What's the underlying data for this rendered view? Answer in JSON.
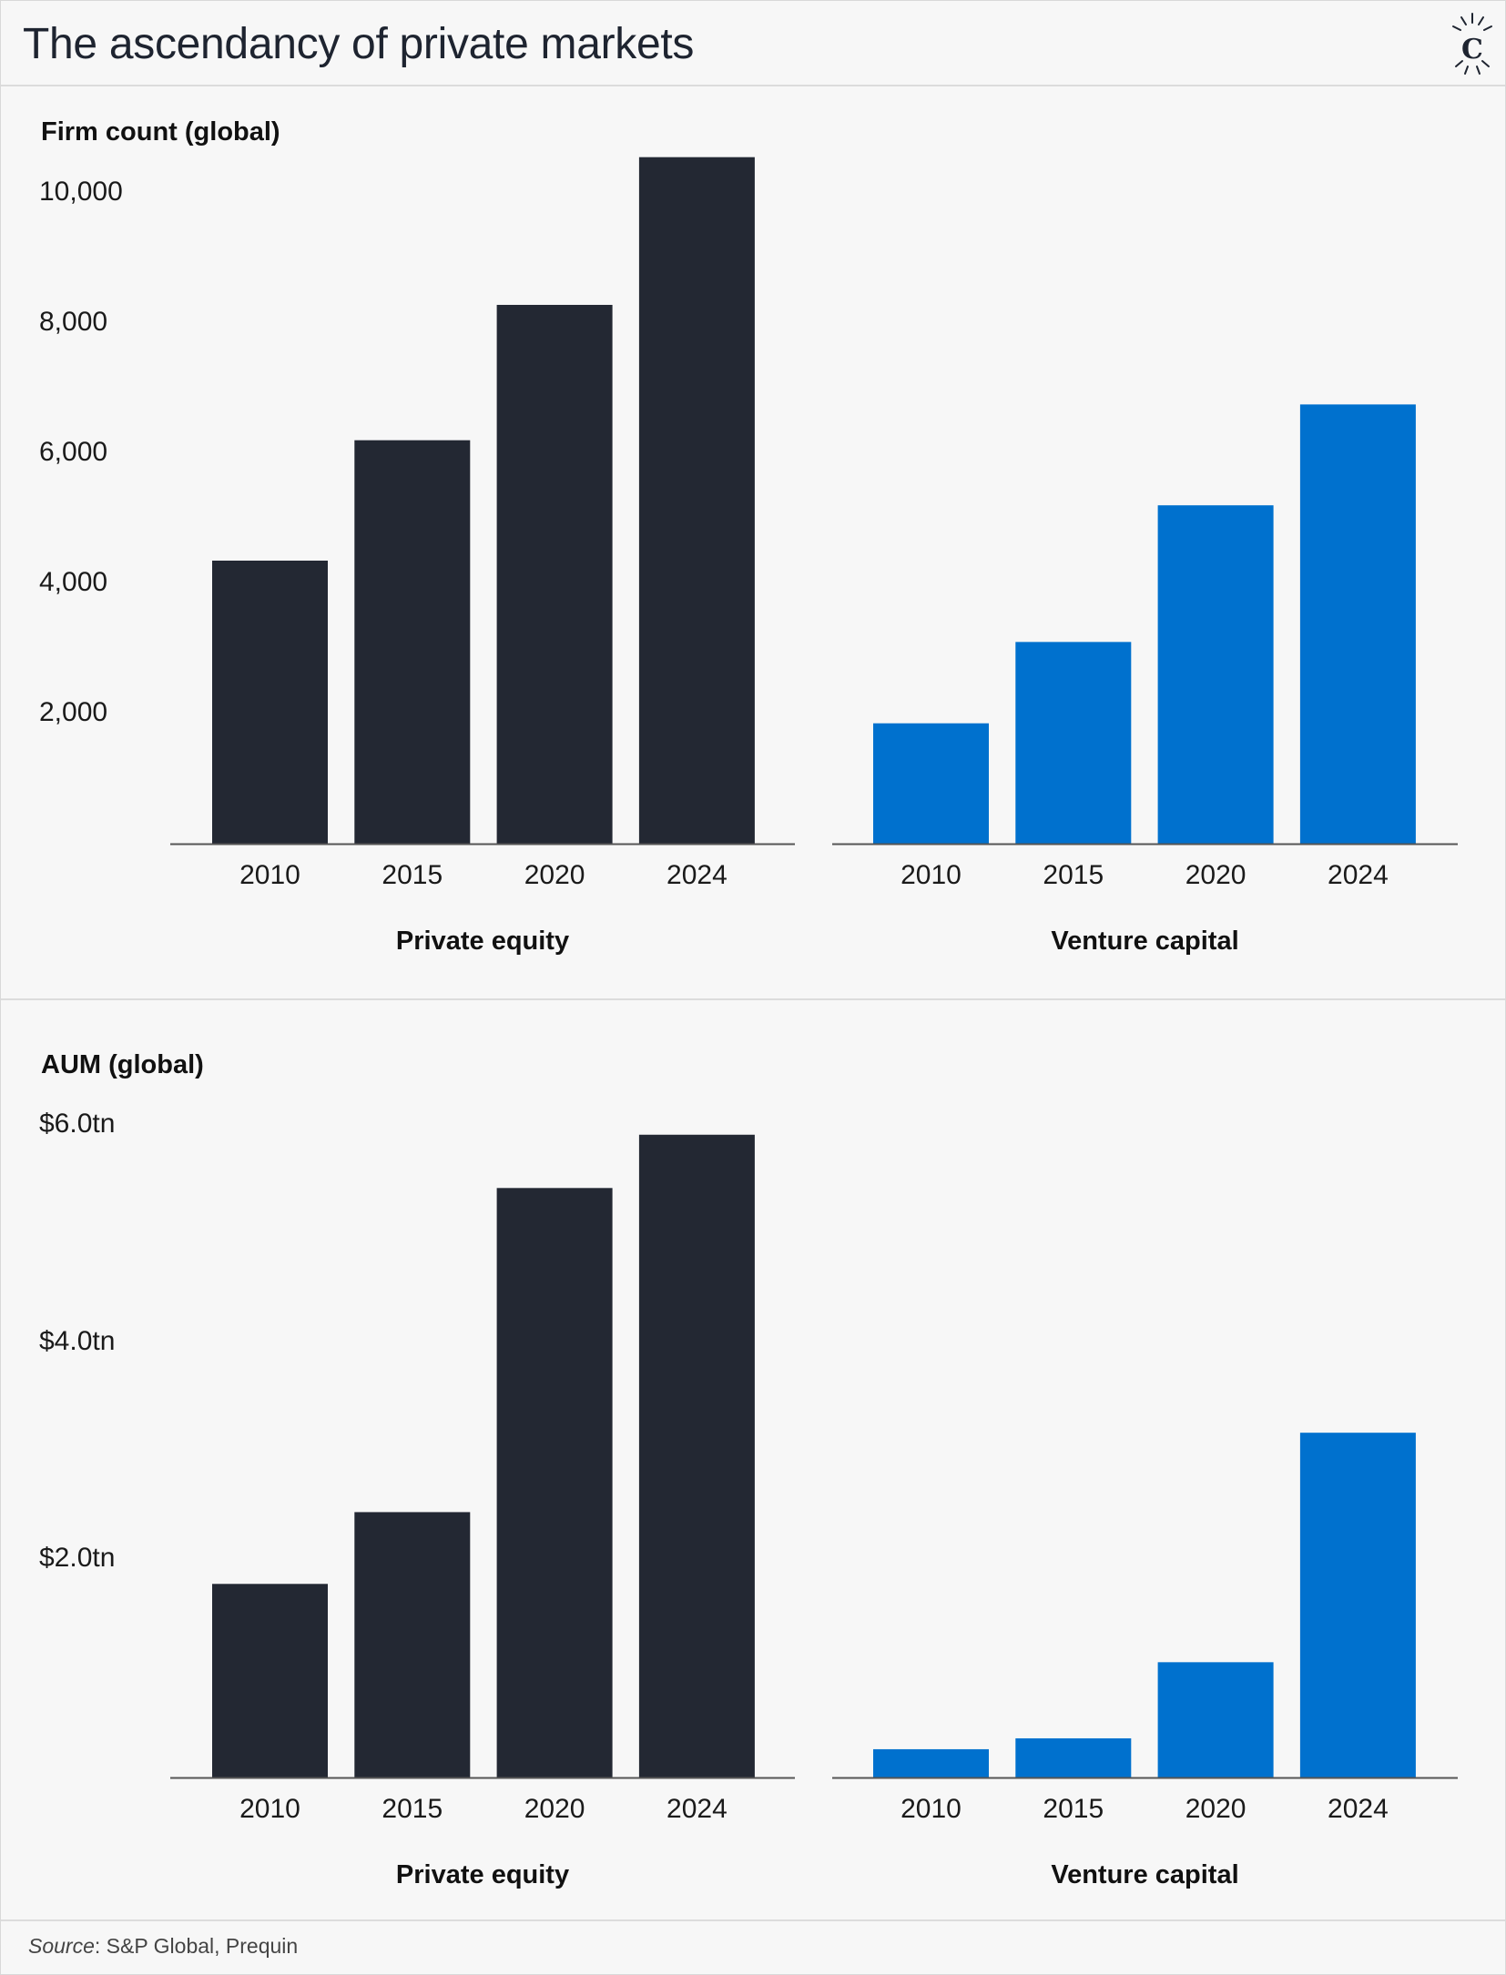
{
  "title": "The ascendancy of private markets",
  "logo_letter": "C",
  "source": {
    "label": "Source",
    "text": ": S&P Global, Prequin"
  },
  "colors": {
    "private_equity": "#232833",
    "venture_capital": "#0071ce",
    "axis": "#555555"
  },
  "chart_data": [
    {
      "type": "bar",
      "title": "Firm count (global)",
      "yticks": [
        "2,000",
        "4,000",
        "6,000",
        "8,000",
        "10,000"
      ],
      "ylim": [
        0,
        10000
      ],
      "groups": [
        {
          "name": "Private equity",
          "categories": [
            "2010",
            "2015",
            "2020",
            "2024"
          ],
          "values": [
            4350,
            6200,
            8280,
            10550
          ]
        },
        {
          "name": "Venture capital",
          "categories": [
            "2010",
            "2015",
            "2020",
            "2024"
          ],
          "values": [
            1850,
            3100,
            5200,
            6750
          ]
        }
      ]
    },
    {
      "type": "bar",
      "title": "AUM (global)",
      "yticks": [
        "$2.0tn",
        "$4.0tn",
        "$6.0tn"
      ],
      "ylim": [
        0,
        6
      ],
      "groups": [
        {
          "name": "Private equity",
          "categories": [
            "2010",
            "2015",
            "2020",
            "2024"
          ],
          "values": [
            1.78,
            2.44,
            5.42,
            5.91
          ]
        },
        {
          "name": "Venture capital",
          "categories": [
            "2010",
            "2015",
            "2020",
            "2024"
          ],
          "values": [
            0.26,
            0.36,
            1.06,
            3.17
          ]
        }
      ]
    }
  ]
}
